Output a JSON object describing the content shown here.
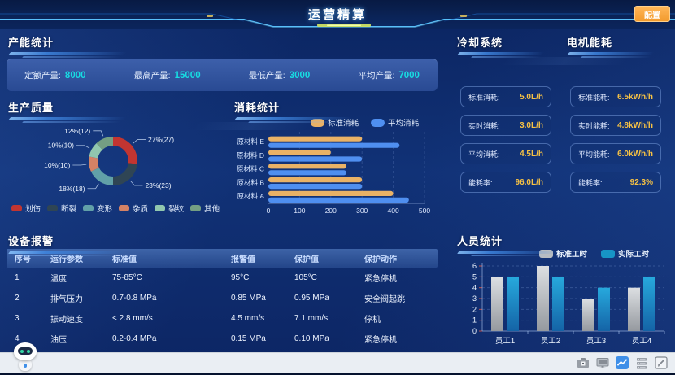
{
  "header": {
    "title": "运营精算",
    "config_button": "配置"
  },
  "colors": {
    "accent_cyan": "#17dce2",
    "accent_yellow": "#f7c244",
    "button_orange": "#f5a43c",
    "donut_palette": [
      "#c23531",
      "#2f4554",
      "#61a0a8",
      "#d48265",
      "#91c7ae",
      "#749f83"
    ],
    "hbar_orange": "#e9b266",
    "hbar_blue": "#4f8ff0",
    "vbar_gray_top": "#dcdfe2",
    "vbar_gray_bottom": "#95999f",
    "vbar_blue_top": "#27a9dd",
    "vbar_blue_bottom": "#1463a6"
  },
  "sections": {
    "capacity": {
      "title": "产能统计",
      "stats": [
        {
          "label": "定额产量:",
          "value": "8000"
        },
        {
          "label": "最高产量:",
          "value": "15000"
        },
        {
          "label": "最低产量:",
          "value": "3000"
        },
        {
          "label": "平均产量:",
          "value": "7000"
        }
      ]
    },
    "quality": {
      "title": "生产质量"
    },
    "consumption": {
      "title": "消耗统计"
    },
    "alarm": {
      "title": "设备报警",
      "table": {
        "headers": [
          "序号",
          "运行参数",
          "标准值",
          "报警值",
          "保护值",
          "保护动作"
        ],
        "rows": [
          [
            "1",
            "温度",
            "75-85°C",
            "95°C",
            "105°C",
            "紧急停机"
          ],
          [
            "2",
            "排气压力",
            "0.7-0.8 MPa",
            "0.85 MPa",
            "0.95 MPa",
            "安全阀起跳"
          ],
          [
            "3",
            "振动速度",
            "< 2.8 mm/s",
            "4.5 mm/s",
            "7.1 mm/s",
            "停机"
          ],
          [
            "4",
            "油压",
            "0.2-0.4 MPa",
            "0.15 MPa",
            "0.10 MPa",
            "紧急停机"
          ]
        ]
      }
    },
    "cooling": {
      "title": "冷却系统",
      "stats": [
        {
          "label": "标准消耗:",
          "value": "5.0L/h"
        },
        {
          "label": "实时消耗:",
          "value": "3.0L/h"
        },
        {
          "label": "平均消耗:",
          "value": "4.5L/h"
        },
        {
          "label": "能耗率:",
          "value": "96.0L/h"
        }
      ]
    },
    "motor": {
      "title": "电机能耗",
      "stats": [
        {
          "label": "标准能耗:",
          "value": "6.5kWh/h"
        },
        {
          "label": "实时能耗:",
          "value": "4.8kWh/h"
        },
        {
          "label": "平均能耗:",
          "value": "6.0kWh/h"
        },
        {
          "label": "能耗率:",
          "value": "92.3%"
        }
      ]
    },
    "personnel": {
      "title": "人员统计"
    }
  },
  "chart_data": [
    {
      "id": "quality",
      "type": "pie",
      "donut": true,
      "title": "生产质量",
      "legend_position": "bottom",
      "slices": [
        {
          "name": "划伤",
          "value": 27,
          "label": "27%(27)"
        },
        {
          "name": "断裂",
          "value": 23,
          "label": "23%(23)"
        },
        {
          "name": "变形",
          "value": 18,
          "label": "18%(18)"
        },
        {
          "name": "杂质",
          "value": 10,
          "label": "10%(10)"
        },
        {
          "name": "裂纹",
          "value": 10,
          "label": "10%(10)"
        },
        {
          "name": "其他",
          "value": 12,
          "label": "12%(12)"
        }
      ]
    },
    {
      "id": "consumption",
      "type": "bar",
      "orientation": "horizontal",
      "title": "消耗统计",
      "legend_position": "top",
      "categories": [
        "原材料 A",
        "原材料 B",
        "原材料 C",
        "原材料 D",
        "原材料 E"
      ],
      "series": [
        {
          "name": "标准消耗",
          "values": [
            400,
            300,
            250,
            200,
            300
          ]
        },
        {
          "name": "平均消耗",
          "values": [
            450,
            300,
            250,
            300,
            420
          ]
        }
      ],
      "xlim": [
        0,
        500
      ],
      "xticks": [
        0,
        100,
        200,
        300,
        400,
        500
      ],
      "grid": "dashed-vertical"
    },
    {
      "id": "personnel",
      "type": "bar",
      "orientation": "vertical",
      "title": "人员统计",
      "legend_position": "top",
      "categories": [
        "员工1",
        "员工2",
        "员工3",
        "员工4"
      ],
      "series": [
        {
          "name": "标准工时",
          "values": [
            5,
            6,
            3,
            4
          ]
        },
        {
          "name": "实际工时",
          "values": [
            5,
            5,
            4,
            5
          ]
        }
      ],
      "ylim": [
        0,
        6
      ],
      "yticks": [
        0,
        1,
        2,
        3,
        4,
        5,
        6
      ],
      "grid": "dashed-horizontal"
    }
  ],
  "taskbar": {
    "icons": [
      {
        "name": "camera-icon",
        "active": false
      },
      {
        "name": "display-icon",
        "active": false
      },
      {
        "name": "chart-app-icon",
        "active": true
      },
      {
        "name": "list-icon",
        "active": false
      },
      {
        "name": "edit-icon",
        "active": false
      }
    ]
  },
  "assistant": {
    "name": "assistant-robot"
  }
}
